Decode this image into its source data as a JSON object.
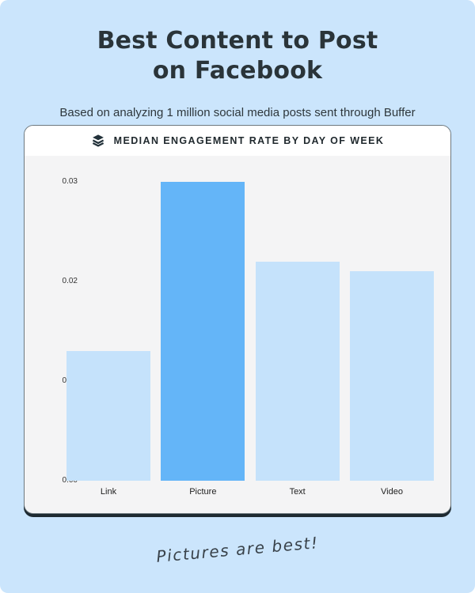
{
  "page": {
    "background_color": "#CBE5FC",
    "title_line1": "Best Content to Post",
    "title_line2": "on Facebook",
    "subtitle": "Based on analyzing 1 million social media posts sent through Buffer",
    "footnote": "Pictures are best!"
  },
  "card": {
    "header": {
      "icon": "buffer-logo-icon",
      "icon_color": "#22313A",
      "title": "MEDIAN ENGAGEMENT RATE BY DAY OF WEEK"
    }
  },
  "chart_data": {
    "type": "bar",
    "title": "MEDIAN ENGAGEMENT RATE BY DAY OF WEEK",
    "categories": [
      "Link",
      "Picture",
      "Text",
      "Video"
    ],
    "values": [
      0.013,
      0.03,
      0.022,
      0.021
    ],
    "highlight_index": 1,
    "highlight_category": "Picture",
    "bar_color": "#C5E2FB",
    "highlight_color": "#64B5F8",
    "plot_background": "#F4F4F5",
    "y_ticks": [
      "0.03",
      "0.02",
      "0.01",
      "0.00"
    ],
    "y_tick_values": [
      0.03,
      0.02,
      0.01,
      0.0
    ],
    "ylim": [
      0,
      0.03
    ],
    "xlabel": "",
    "ylabel": "",
    "grid": false,
    "legend": null
  }
}
